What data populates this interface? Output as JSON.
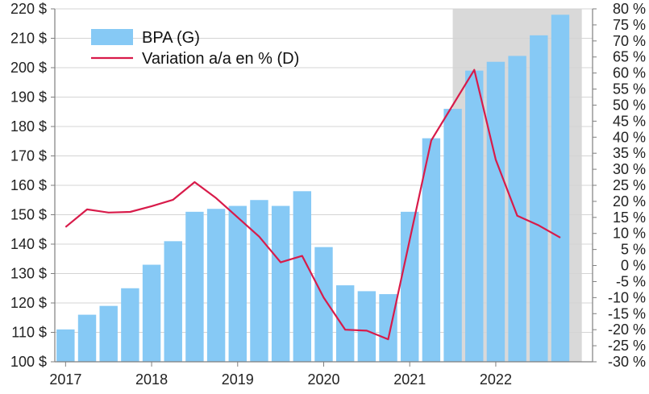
{
  "chart_data": {
    "type": "bar+line",
    "title": "",
    "shaded_region": {
      "from": 2021.5,
      "to": 2023.0,
      "color": "#d9d9d9"
    },
    "x_axis": {
      "range": [
        2016.875,
        2023.125
      ],
      "ticks": [
        2017,
        2018,
        2019,
        2020,
        2021,
        2022
      ],
      "tick_labels": [
        "2017",
        "2018",
        "2019",
        "2020",
        "2021",
        "2022"
      ]
    },
    "y_left": {
      "range": [
        100,
        220
      ],
      "ticks": [
        100,
        110,
        120,
        130,
        140,
        150,
        160,
        170,
        180,
        190,
        200,
        210,
        220
      ],
      "tick_labels": [
        "100 $",
        "110 $",
        "120 $",
        "130 $",
        "140 $",
        "150 $",
        "160 $",
        "170 $",
        "180 $",
        "190 $",
        "200 $",
        "210 $",
        "220 $"
      ]
    },
    "y_right": {
      "range": [
        -30,
        80
      ],
      "ticks": [
        -30,
        -25,
        -20,
        -15,
        -10,
        -5,
        0,
        5,
        10,
        15,
        20,
        25,
        30,
        35,
        40,
        45,
        50,
        55,
        60,
        65,
        70,
        75,
        80
      ],
      "tick_labels": [
        "-30 %",
        "-25 %",
        "-20 %",
        "-15 %",
        "-10 %",
        "-5 %",
        "0 %",
        "5 %",
        "10 %",
        "15 %",
        "20 %",
        "25 %",
        "30 %",
        "35 %",
        "40 %",
        "45 %",
        "50 %",
        "55 %",
        "60 %",
        "65 %",
        "70 %",
        "75 %",
        "80 %"
      ]
    },
    "x": [
      2017.0,
      2017.25,
      2017.5,
      2017.75,
      2018.0,
      2018.25,
      2018.5,
      2018.75,
      2019.0,
      2019.25,
      2019.5,
      2019.75,
      2020.0,
      2020.25,
      2020.5,
      2020.75,
      2021.0,
      2021.25,
      2021.5,
      2021.75,
      2022.0,
      2022.25,
      2022.5,
      2022.75
    ],
    "series": [
      {
        "name": "BPA (G)",
        "type": "bar",
        "axis": "left",
        "color": "#86c9f5",
        "values": [
          111,
          116,
          119,
          125,
          133,
          141,
          151,
          152,
          153,
          155,
          153,
          158,
          139,
          126,
          124,
          123,
          151,
          176,
          186,
          199,
          202,
          204,
          211,
          218
        ]
      },
      {
        "name": "Variation a/a en % (D)",
        "type": "line",
        "axis": "right",
        "color": "#d81b4a",
        "values": [
          12,
          17.5,
          16.5,
          16.7,
          18.5,
          20.5,
          26,
          21,
          15,
          9,
          1,
          3,
          -10,
          -20,
          -20.3,
          -23,
          8,
          39,
          50,
          61,
          33,
          15.5,
          12.5,
          8.7
        ]
      }
    ],
    "legend": {
      "position": "top-left"
    }
  }
}
